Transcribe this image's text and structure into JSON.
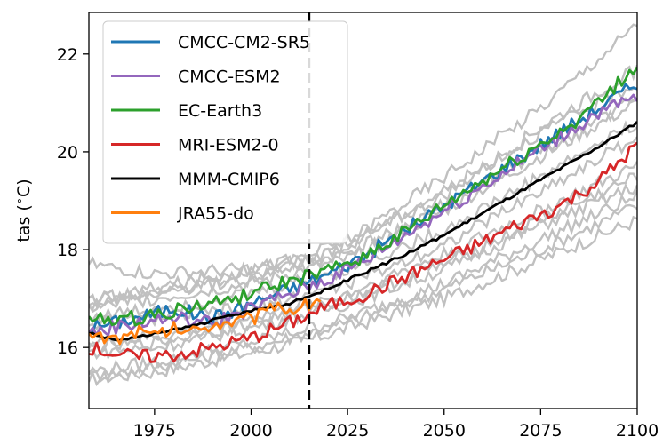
{
  "chart_data": {
    "type": "line",
    "xlabel": "",
    "ylabel": "tas ($^\\circ$C)",
    "xlim": [
      1958,
      2100
    ],
    "ylim": [
      14.75,
      22.85
    ],
    "xticks": [
      1975,
      2000,
      2025,
      2050,
      2075,
      2100
    ],
    "yticks": [
      16,
      18,
      20,
      22
    ],
    "grid": false,
    "legend_position": "top-left",
    "vertical_line": {
      "x": 2015,
      "style": "dashed",
      "color": "#000000"
    },
    "series": [
      {
        "name": "CMCC-CM2-SR5",
        "color": "#1f77b4",
        "x": [
          1958,
          1970,
          1980,
          1990,
          2000,
          2010,
          2020,
          2030,
          2040,
          2050,
          2060,
          2070,
          2080,
          2090,
          2100
        ],
        "y": [
          16.4,
          16.6,
          16.8,
          16.6,
          16.9,
          17.2,
          17.5,
          17.9,
          18.4,
          18.9,
          19.4,
          19.9,
          20.4,
          20.9,
          21.4
        ]
      },
      {
        "name": "CMCC-ESM2",
        "color": "#9467bd",
        "x": [
          1958,
          1970,
          1980,
          1990,
          2000,
          2010,
          2020,
          2030,
          2040,
          2050,
          2060,
          2070,
          2080,
          2090,
          2100
        ],
        "y": [
          16.3,
          16.5,
          16.6,
          16.5,
          16.8,
          17.1,
          17.4,
          17.8,
          18.3,
          18.8,
          19.3,
          19.8,
          20.3,
          20.8,
          21.1
        ]
      },
      {
        "name": "EC-Earth3",
        "color": "#2ca02c",
        "x": [
          1958,
          1970,
          1980,
          1990,
          2000,
          2010,
          2020,
          2030,
          2040,
          2050,
          2060,
          2070,
          2080,
          2090,
          2100
        ],
        "y": [
          16.55,
          16.6,
          16.75,
          16.9,
          17.1,
          17.35,
          17.55,
          17.9,
          18.35,
          18.9,
          19.4,
          19.9,
          20.4,
          21.0,
          21.75
        ]
      },
      {
        "name": "MRI-ESM2-0",
        "color": "#d62728",
        "x": [
          1958,
          1970,
          1980,
          1990,
          2000,
          2010,
          2020,
          2030,
          2040,
          2050,
          2060,
          2070,
          2080,
          2090,
          2100
        ],
        "y": [
          16.0,
          15.8,
          15.85,
          16.0,
          16.2,
          16.5,
          16.85,
          17.1,
          17.45,
          17.8,
          18.15,
          18.55,
          18.9,
          19.4,
          20.15
        ]
      },
      {
        "name": "MMM-CMIP6",
        "color": "#000000",
        "x": [
          1958,
          1965,
          1970,
          1980,
          1990,
          2000,
          2010,
          2020,
          2030,
          2040,
          2050,
          2060,
          2070,
          2080,
          2090,
          2100
        ],
        "y": [
          16.3,
          16.15,
          16.2,
          16.35,
          16.55,
          16.75,
          16.9,
          17.2,
          17.55,
          17.9,
          18.3,
          18.75,
          19.2,
          19.65,
          20.1,
          20.6
        ]
      },
      {
        "name": "JRA55-do",
        "color": "#ff7f0e",
        "x": [
          1958,
          1965,
          1970,
          1975,
          1980,
          1985,
          1990,
          1995,
          2000,
          2005,
          2010,
          2015,
          2018
        ],
        "y": [
          16.25,
          16.2,
          16.3,
          16.25,
          16.4,
          16.35,
          16.5,
          16.55,
          16.6,
          16.75,
          16.8,
          16.9,
          17.05
        ]
      }
    ],
    "background_models": {
      "color": "#c0c0c0",
      "x": [
        1958,
        1975,
        2000,
        2015,
        2025,
        2050,
        2075,
        2100
      ],
      "members": [
        [
          15.35,
          15.5,
          15.9,
          16.15,
          16.4,
          17.0,
          17.8,
          18.6
        ],
        [
          15.4,
          15.6,
          16.0,
          16.3,
          16.5,
          17.2,
          18.0,
          18.9
        ],
        [
          15.5,
          15.7,
          16.1,
          16.4,
          16.6,
          17.3,
          18.2,
          19.1
        ],
        [
          15.9,
          16.0,
          16.4,
          16.7,
          16.9,
          17.6,
          18.5,
          19.3
        ],
        [
          16.0,
          16.1,
          16.5,
          16.8,
          17.0,
          17.7,
          18.6,
          19.5
        ],
        [
          16.1,
          16.2,
          16.6,
          16.9,
          17.1,
          17.9,
          18.8,
          19.7
        ],
        [
          16.5,
          16.6,
          16.8,
          17.1,
          17.3,
          18.1,
          19.2,
          20.3
        ],
        [
          16.6,
          16.8,
          17.1,
          17.4,
          17.6,
          18.4,
          19.5,
          20.6
        ],
        [
          16.8,
          17.0,
          17.3,
          17.6,
          17.8,
          18.8,
          19.9,
          21.0
        ],
        [
          17.0,
          17.1,
          17.4,
          17.7,
          17.9,
          18.9,
          20.0,
          21.1
        ],
        [
          16.9,
          17.1,
          17.5,
          17.8,
          18.1,
          19.2,
          20.4,
          21.4
        ],
        [
          17.7,
          17.5,
          17.6,
          17.8,
          18.1,
          19.1,
          20.5,
          21.7
        ],
        [
          16.95,
          17.2,
          17.6,
          17.9,
          18.2,
          19.5,
          20.9,
          22.6
        ]
      ]
    }
  }
}
